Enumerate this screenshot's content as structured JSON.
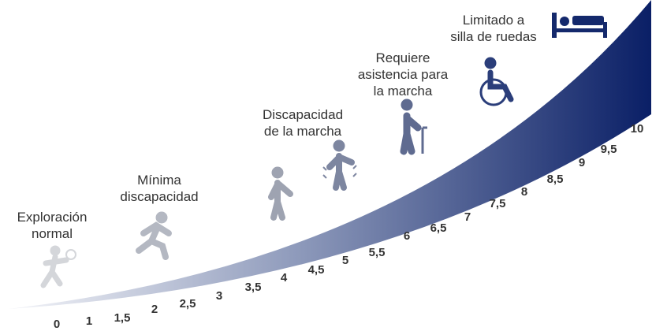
{
  "stages": [
    {
      "lines": [
        "Exploración",
        "normal"
      ]
    },
    {
      "lines": [
        "Mínima",
        "discapacidad"
      ]
    },
    {
      "lines": [
        "Discapacidad",
        "de la marcha"
      ]
    },
    {
      "lines": [
        "Requiere",
        "asistencia para",
        "la marcha"
      ]
    },
    {
      "lines": [
        "Limitado a",
        "silla de ruedas"
      ]
    }
  ],
  "scale": [
    "0",
    "1",
    "1,5",
    "2",
    "2,5",
    "3",
    "3,5",
    "4",
    "4,5",
    "5",
    "5,5",
    "6",
    "6,5",
    "7",
    "7,5",
    "8",
    "8,5",
    "9",
    "9,5",
    "10"
  ]
}
